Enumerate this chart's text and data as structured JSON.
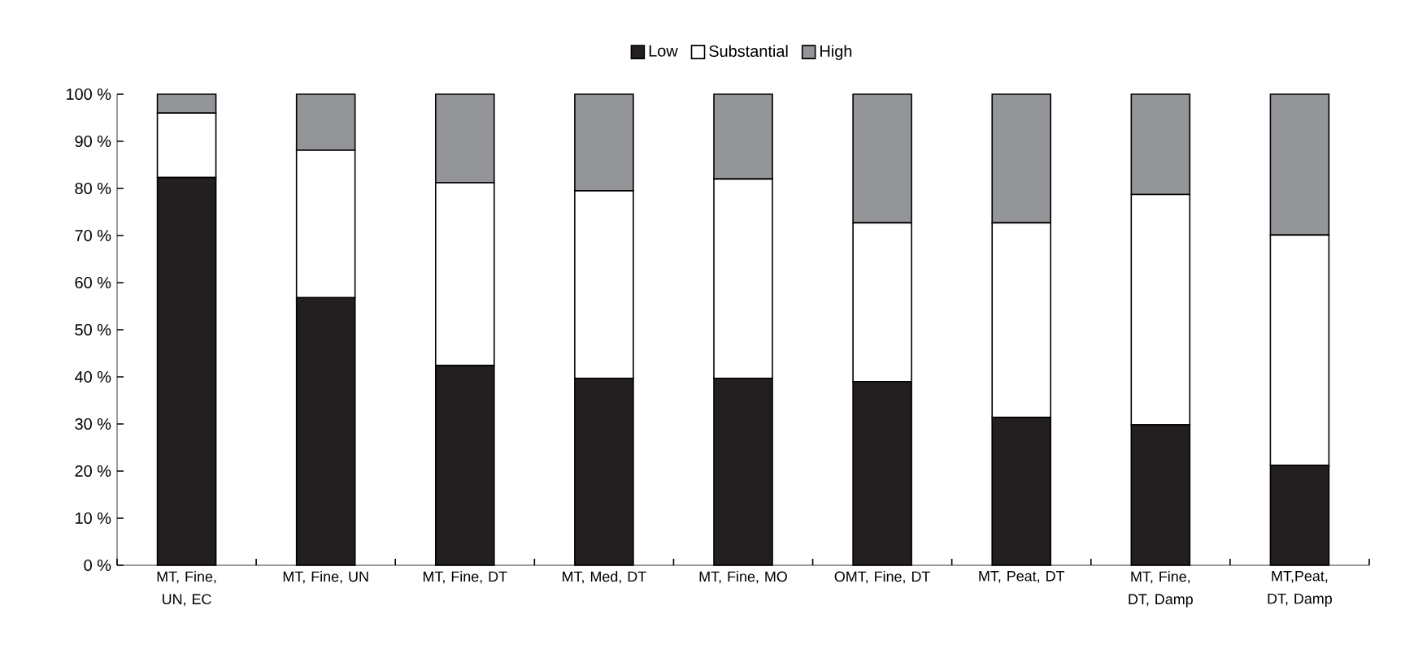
{
  "chart_data": {
    "type": "bar",
    "stacked": true,
    "legend": "top",
    "grid": false,
    "categories": [
      "MT, Fine, UN, EC",
      "MT, Fine, UN",
      "MT, Fine, DT",
      "MT, Med, DT",
      "MT, Fine, MO",
      "OMT, Fine, DT",
      "MT, Peat, DT",
      "MT, Fine, DT, Damp",
      "MT,Peat, DT, Damp"
    ],
    "series": [
      {
        "name": "Low",
        "color": "#231f20",
        "values": [
          82.3,
          56.8,
          42.4,
          39.7,
          39.7,
          39.0,
          31.4,
          29.8,
          21.2
        ]
      },
      {
        "name": "Substantial",
        "color": "#ffffff",
        "values": [
          13.7,
          31.3,
          38.8,
          39.8,
          42.3,
          33.7,
          41.3,
          48.9,
          48.9
        ]
      },
      {
        "name": "High",
        "color": "#939598",
        "values": [
          4.0,
          11.9,
          18.8,
          20.5,
          18.0,
          27.3,
          27.3,
          21.3,
          29.9
        ]
      }
    ],
    "ylim": [
      0,
      100
    ],
    "yticks": [
      {
        "value": 0,
        "label": "0 %"
      },
      {
        "value": 10,
        "label": "10 %"
      },
      {
        "value": 20,
        "label": "20 %"
      },
      {
        "value": 30,
        "label": "30 %"
      },
      {
        "value": 40,
        "label": "40 %"
      },
      {
        "value": 50,
        "label": "50 %"
      },
      {
        "value": 60,
        "label": "60 %"
      },
      {
        "value": 70,
        "label": "70 %"
      },
      {
        "value": 80,
        "label": "80 %"
      },
      {
        "value": 90,
        "label": "90 %"
      },
      {
        "value": 100,
        "label": "100 %"
      }
    ]
  }
}
